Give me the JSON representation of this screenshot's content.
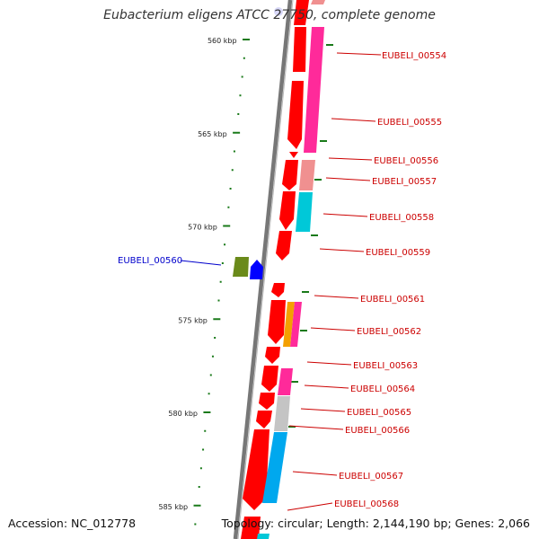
{
  "title": "Eubacterium eligens ATCC 27750, complete genome",
  "footer": {
    "accession": "Accession: NC_012778",
    "topology": "Topology: circular; Length: 2,144,190 bp; Genes: 2,066"
  },
  "colors": {
    "backbone": "#808080",
    "tick": "#1a7a1a",
    "forward_label": "#cc0000",
    "reverse_label": "#0000cc",
    "red": "#ff0000",
    "pink": "#ff2a9a",
    "light_pink": "#f09090",
    "cyan": "#00c8d8",
    "light_blue": "#00a8ee",
    "gray": "#c4c4c4",
    "orange": "#f4a000",
    "olive": "#6a8a1a",
    "blue": "#0000ff"
  },
  "scale_labels": [
    {
      "text": "560 kbp",
      "kbp": 560
    },
    {
      "text": "565 kbp",
      "kbp": 565
    },
    {
      "text": "570 kbp",
      "kbp": 570
    },
    {
      "text": "575 kbp",
      "kbp": 575
    },
    {
      "text": "580 kbp",
      "kbp": 580
    },
    {
      "text": "585 kbp",
      "kbp": 585
    }
  ],
  "gene_labels": [
    {
      "text": "EUBELI_00554",
      "strand": "forward"
    },
    {
      "text": "EUBELI_00555",
      "strand": "forward"
    },
    {
      "text": "EUBELI_00556",
      "strand": "forward"
    },
    {
      "text": "EUBELI_00557",
      "strand": "forward"
    },
    {
      "text": "EUBELI_00558",
      "strand": "forward"
    },
    {
      "text": "EUBELI_00559",
      "strand": "forward"
    },
    {
      "text": "EUBELI_00560",
      "strand": "reverse"
    },
    {
      "text": "EUBELI_00561",
      "strand": "forward"
    },
    {
      "text": "EUBELI_00562",
      "strand": "forward"
    },
    {
      "text": "EUBELI_00563",
      "strand": "forward"
    },
    {
      "text": "EUBELI_00564",
      "strand": "forward"
    },
    {
      "text": "EUBELI_00565",
      "strand": "forward"
    },
    {
      "text": "EUBELI_00566",
      "strand": "forward"
    },
    {
      "text": "EUBELI_00567",
      "strand": "forward"
    },
    {
      "text": "EUBELI_00568",
      "strand": "forward"
    }
  ]
}
